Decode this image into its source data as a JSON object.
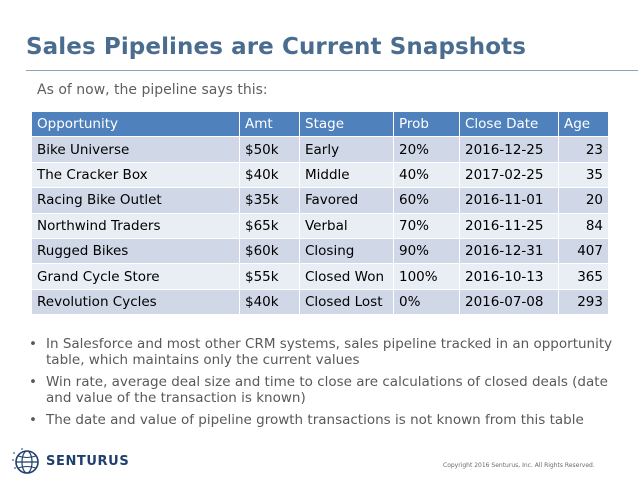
{
  "slide": {
    "title": "Sales Pipelines are Current Snapshots",
    "subtitle": "As of now, the pipeline says this:"
  },
  "table": {
    "headers": [
      "Opportunity",
      "Amt",
      "Stage",
      "Prob",
      "Close Date",
      "Age"
    ],
    "rows": [
      [
        "Bike Universe",
        "$50k",
        "Early",
        "20%",
        "2016-12-25",
        "23"
      ],
      [
        "The Cracker Box",
        "$40k",
        "Middle",
        "40%",
        "2017-02-25",
        "35"
      ],
      [
        "Racing Bike Outlet",
        "$35k",
        "Favored",
        "60%",
        "2016-11-01",
        "20"
      ],
      [
        "Northwind Traders",
        "$65k",
        "Verbal",
        "70%",
        "2016-11-25",
        "84"
      ],
      [
        "Rugged Bikes",
        "$60k",
        "Closing",
        "90%",
        "2016-12-31",
        "407"
      ],
      [
        "Grand Cycle Store",
        "$55k",
        "Closed Won",
        "100%",
        "2016-10-13",
        "365"
      ],
      [
        "Revolution Cycles",
        "$40k",
        "Closed Lost",
        "0%",
        "2016-07-08",
        "293"
      ]
    ]
  },
  "bullets": {
    "marker": "•",
    "items": [
      "In Salesforce and most other CRM systems, sales pipeline tracked in an opportunity table, which maintains only the current values",
      "Win rate, average deal size and time to close are calculations of closed deals (date and value of the transaction is known)",
      "The date and value of pipeline growth transactions is not known from this table"
    ]
  },
  "footer": {
    "logo_text": "SENTURUS",
    "logo_icon": "senturus-globe-icon",
    "copyright": "Copyright 2016 Senturus, Inc. All Rights Reserved."
  },
  "colors": {
    "title": "#4a6d8f",
    "table_header": "#4f81bd",
    "row_dark": "#d0d8e8",
    "row_light": "#e9edf4",
    "logo": "#1f3f6e"
  }
}
